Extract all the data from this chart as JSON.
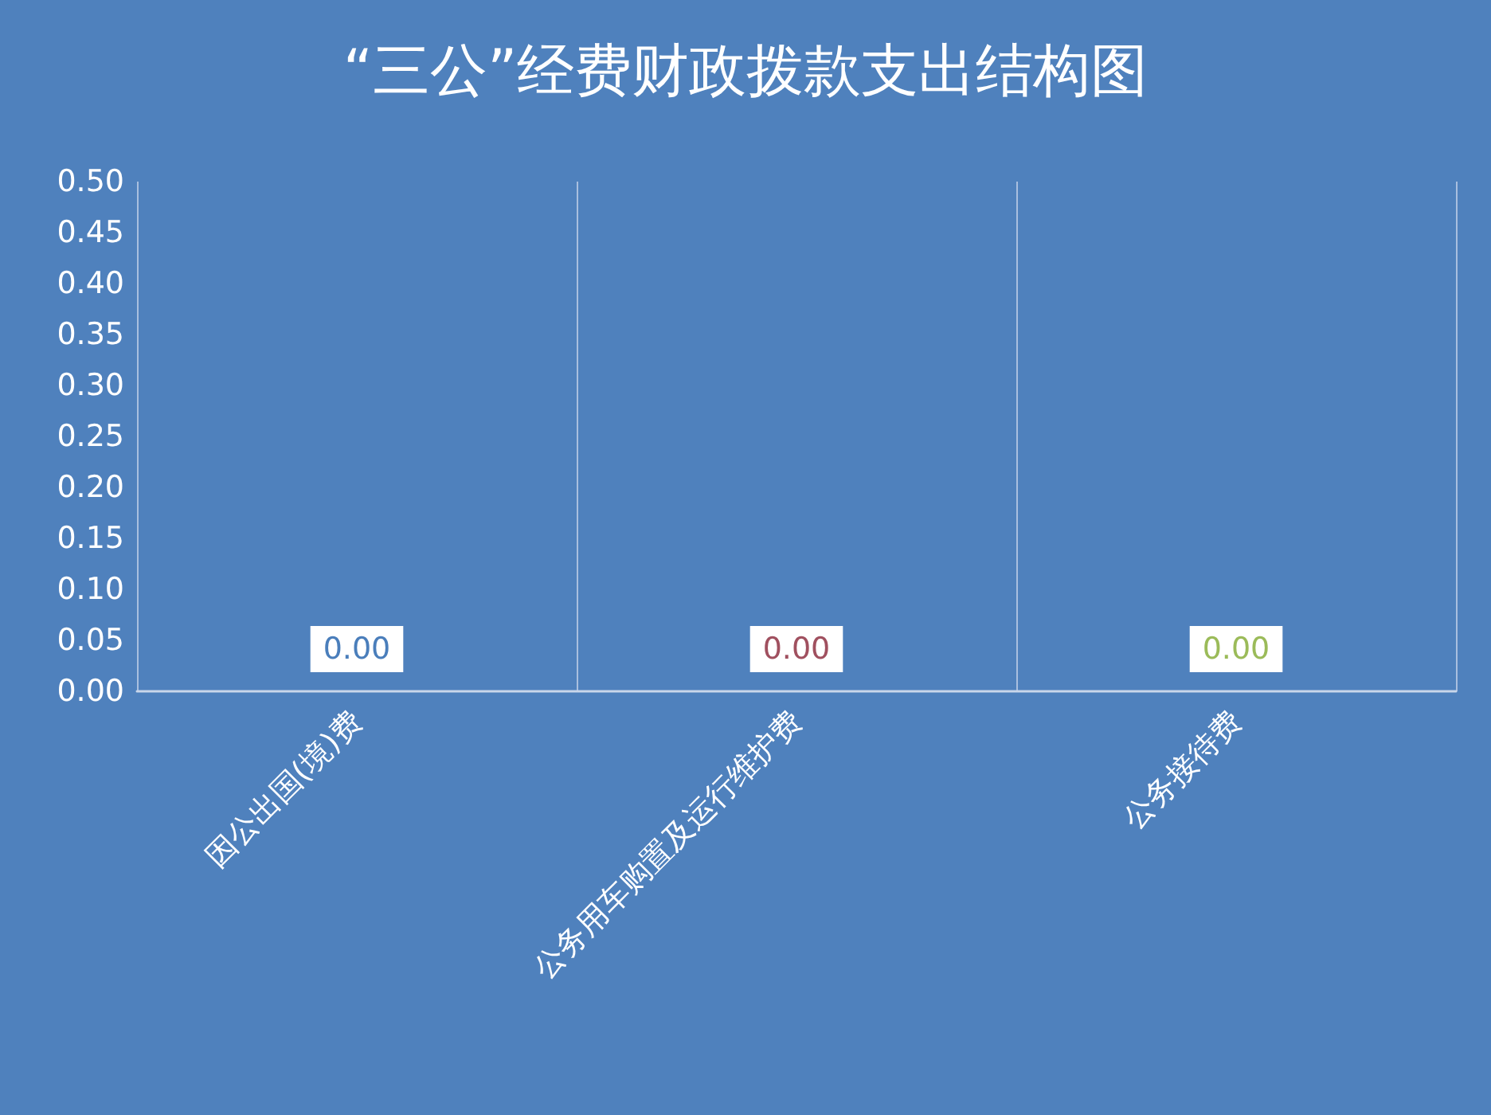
{
  "chart_data": {
    "type": "bar",
    "title": "“三公”经费财政拨款支出结构图",
    "categories": [
      "因公出国(境)费",
      "公务用车购置及运行维护费",
      "公务接待费"
    ],
    "values": [
      0,
      0,
      0
    ],
    "colors": [
      "#4a7ebb",
      "#a0505f",
      "#9bbb59"
    ],
    "value_labels": [
      "0.00",
      "0.00",
      "0.00"
    ],
    "ylim": [
      0,
      0.5
    ],
    "yticks": [
      {
        "value": 0,
        "label": "0.00"
      },
      {
        "value": 0.05,
        "label": "0.05"
      },
      {
        "value": 0.1,
        "label": "0.10"
      },
      {
        "value": 0.15,
        "label": "0.15"
      },
      {
        "value": 0.2,
        "label": "0.20"
      },
      {
        "value": 0.25,
        "label": "0.25"
      },
      {
        "value": 0.3,
        "label": "0.30"
      },
      {
        "value": 0.35,
        "label": "0.35"
      },
      {
        "value": 0.4,
        "label": "0.40"
      },
      {
        "value": 0.45,
        "label": "0.45"
      },
      {
        "value": 0.5,
        "label": "0.50"
      }
    ],
    "grid": "x"
  }
}
